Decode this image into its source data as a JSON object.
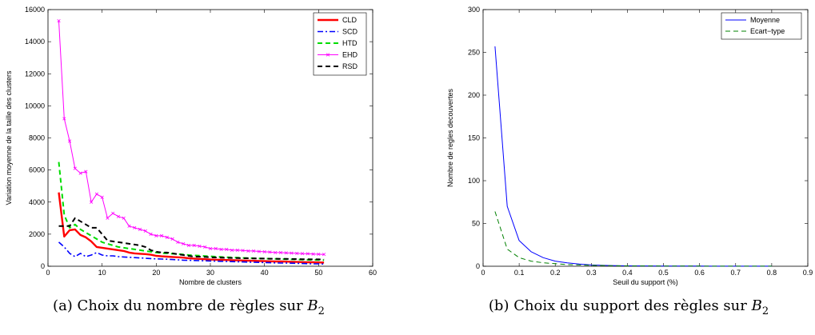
{
  "captions": [
    {
      "prefix": "(a) Choix du nombre de règles sur ",
      "sym": "B",
      "sub": "2"
    },
    {
      "prefix": "(b) Choix du support des règles sur ",
      "sym": "B",
      "sub": "2"
    }
  ],
  "chart_data": [
    {
      "type": "line",
      "title": "",
      "xlabel": "Nombre de clusters",
      "ylabel": "Variation moyenne de la taille des clusters",
      "xlim": [
        0,
        60
      ],
      "ylim": [
        0,
        16000
      ],
      "xticks": [
        0,
        10,
        20,
        30,
        40,
        50,
        60
      ],
      "yticks": [
        0,
        2000,
        4000,
        6000,
        8000,
        10000,
        12000,
        14000,
        16000
      ],
      "legend_position": "top-right",
      "series": [
        {
          "name": "CLD",
          "color": "#ff0000",
          "style": "solid",
          "width": 2.4,
          "marker": "none",
          "x": [
            2,
            3,
            4,
            5,
            6,
            7,
            8,
            9,
            10,
            11,
            12,
            13,
            14,
            15,
            16,
            17,
            18,
            19,
            20,
            21,
            22,
            23,
            24,
            25,
            26,
            27,
            28,
            29,
            30,
            31,
            32,
            33,
            34,
            35,
            36,
            37,
            38,
            39,
            40,
            41,
            42,
            43,
            44,
            45,
            46,
            47,
            48,
            49,
            50,
            51
          ],
          "values": [
            4600,
            1850,
            2250,
            2300,
            1950,
            1800,
            1550,
            1200,
            1150,
            1100,
            1050,
            1000,
            950,
            850,
            800,
            780,
            760,
            720,
            650,
            620,
            600,
            580,
            560,
            540,
            500,
            480,
            460,
            440,
            420,
            410,
            400,
            390,
            380,
            370,
            360,
            350,
            340,
            330,
            320,
            310,
            300,
            300,
            290,
            280,
            270,
            260,
            250,
            250,
            240,
            230
          ]
        },
        {
          "name": "SCD",
          "color": "#0000ff",
          "style": "dashdot",
          "width": 1.6,
          "marker": "none",
          "x": [
            2,
            3,
            4,
            5,
            6,
            7,
            8,
            9,
            10,
            11,
            12,
            13,
            14,
            15,
            16,
            17,
            18,
            19,
            20,
            21,
            22,
            23,
            24,
            25,
            26,
            27,
            28,
            29,
            30,
            31,
            32,
            33,
            34,
            35,
            36,
            37,
            38,
            39,
            40,
            41,
            42,
            43,
            44,
            45,
            46,
            47,
            48,
            49,
            50,
            51
          ],
          "values": [
            1500,
            1200,
            800,
            600,
            800,
            600,
            700,
            850,
            700,
            650,
            650,
            600,
            580,
            560,
            540,
            520,
            500,
            480,
            460,
            450,
            440,
            420,
            400,
            380,
            370,
            360,
            350,
            340,
            330,
            320,
            310,
            300,
            290,
            280,
            270,
            260,
            250,
            240,
            230,
            220,
            210,
            200,
            200,
            190,
            180,
            170,
            160,
            150,
            150,
            140
          ]
        },
        {
          "name": "HTD",
          "color": "#00dd00",
          "style": "dashed",
          "width": 2.0,
          "marker": "none",
          "x": [
            2,
            3,
            4,
            5,
            6,
            7,
            8,
            9,
            10,
            11,
            12,
            13,
            14,
            15,
            16,
            17,
            18,
            19,
            20,
            21,
            22,
            23,
            24,
            25,
            26,
            27,
            28,
            29,
            30,
            31,
            32,
            33,
            34,
            35,
            36,
            37,
            38,
            39,
            40,
            41,
            42,
            43,
            44,
            45,
            46,
            47,
            48,
            49,
            50,
            51
          ],
          "values": [
            6500,
            3200,
            2400,
            2600,
            2300,
            2100,
            1900,
            1700,
            1500,
            1400,
            1300,
            1200,
            1150,
            1100,
            1050,
            1000,
            950,
            900,
            850,
            820,
            800,
            780,
            760,
            740,
            700,
            680,
            660,
            640,
            620,
            600,
            580,
            560,
            550,
            540,
            520,
            510,
            500,
            490,
            480,
            470,
            460,
            450,
            440,
            430,
            420,
            410,
            400,
            400,
            390,
            380
          ]
        },
        {
          "name": "EHD",
          "color": "#ff00ff",
          "style": "solid",
          "width": 1.0,
          "marker": "x",
          "x": [
            2,
            3,
            4,
            5,
            6,
            7,
            8,
            9,
            10,
            11,
            12,
            13,
            14,
            15,
            16,
            17,
            18,
            19,
            20,
            21,
            22,
            23,
            24,
            25,
            26,
            27,
            28,
            29,
            30,
            31,
            32,
            33,
            34,
            35,
            36,
            37,
            38,
            39,
            40,
            41,
            42,
            43,
            44,
            45,
            46,
            47,
            48,
            49,
            50,
            51
          ],
          "values": [
            15300,
            9200,
            7800,
            6100,
            5800,
            5900,
            4000,
            4500,
            4300,
            3000,
            3300,
            3100,
            3000,
            2500,
            2400,
            2300,
            2200,
            2000,
            1900,
            1900,
            1800,
            1700,
            1500,
            1400,
            1300,
            1300,
            1250,
            1200,
            1100,
            1100,
            1050,
            1050,
            1000,
            1000,
            980,
            950,
            950,
            920,
            900,
            880,
            850,
            850,
            830,
            820,
            800,
            790,
            780,
            760,
            750,
            740
          ]
        },
        {
          "name": "RSD",
          "color": "#000000",
          "style": "dashed",
          "width": 2.0,
          "marker": "none",
          "x": [
            2,
            3,
            4,
            5,
            6,
            7,
            8,
            9,
            10,
            11,
            12,
            13,
            14,
            15,
            16,
            17,
            18,
            19,
            20,
            21,
            22,
            23,
            24,
            25,
            26,
            27,
            28,
            29,
            30,
            31,
            32,
            33,
            34,
            35,
            36,
            37,
            38,
            39,
            40,
            41,
            42,
            43,
            44,
            45,
            46,
            47,
            48,
            49,
            50,
            51
          ],
          "values": [
            2500,
            2500,
            2500,
            3000,
            2800,
            2600,
            2400,
            2400,
            2000,
            1600,
            1550,
            1500,
            1450,
            1400,
            1350,
            1300,
            1200,
            1000,
            900,
            850,
            850,
            800,
            750,
            700,
            650,
            600,
            600,
            580,
            560,
            550,
            540,
            530,
            520,
            510,
            500,
            500,
            490,
            480,
            480,
            470,
            470,
            460,
            460,
            450,
            450,
            440,
            440,
            430,
            430,
            420
          ]
        }
      ]
    },
    {
      "type": "line",
      "title": "",
      "xlabel": "Seuil du support (%)",
      "ylabel": "Nombre de regles decouvertes",
      "xlim": [
        0,
        0.9
      ],
      "ylim": [
        0,
        300
      ],
      "xticks": [
        0,
        0.1,
        0.2,
        0.3,
        0.4,
        0.5,
        0.6,
        0.7,
        0.8,
        0.9
      ],
      "yticks": [
        0,
        50,
        100,
        150,
        200,
        250,
        300
      ],
      "legend_position": "top-right",
      "series": [
        {
          "name": "Moyenne",
          "color": "#0000ff",
          "style": "solid",
          "width": 1.0,
          "marker": "none",
          "x": [
            0.033,
            0.067,
            0.1,
            0.133,
            0.167,
            0.2,
            0.233,
            0.267,
            0.3,
            0.333,
            0.367,
            0.4,
            0.5,
            0.6,
            0.7,
            0.8
          ],
          "values": [
            257,
            70,
            30,
            17,
            10,
            6,
            4,
            2.5,
            1.5,
            1,
            0.7,
            0.5,
            0.3,
            0.2,
            0.1,
            0.05
          ]
        },
        {
          "name": "Ecart−type",
          "color": "#008000",
          "style": "dashed",
          "width": 1.0,
          "marker": "none",
          "x": [
            0.033,
            0.067,
            0.1,
            0.133,
            0.167,
            0.2,
            0.233,
            0.267,
            0.3,
            0.333,
            0.367,
            0.4,
            0.5,
            0.6,
            0.7,
            0.8
          ],
          "values": [
            64,
            20,
            10,
            6,
            4,
            3,
            2,
            1.5,
            1,
            0.8,
            0.6,
            0.4,
            0.3,
            0.2,
            0.1,
            0.05
          ]
        }
      ]
    }
  ]
}
